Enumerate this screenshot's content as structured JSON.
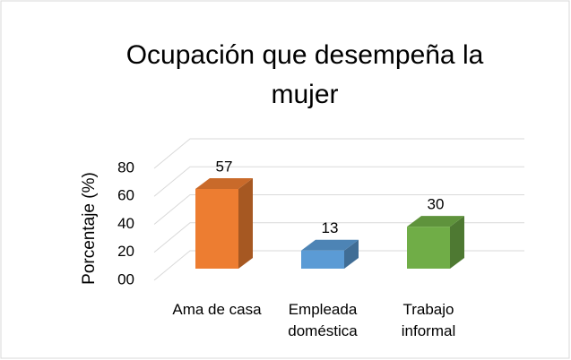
{
  "chart_data": {
    "type": "bar3d",
    "title": "Ocupación que desempeña la mujer",
    "y_label": "Porcentaje (%)",
    "categories": [
      "Ama de casa",
      "Empleada doméstica",
      "Trabajo informal"
    ],
    "values": [
      57,
      13,
      30
    ],
    "colors": [
      "#ed7d31",
      "#5b9bd5",
      "#70ad47"
    ],
    "ylim": [
      0,
      80
    ],
    "yticks": [
      {
        "value": 0,
        "label": "00"
      },
      20,
      40,
      60,
      80
    ],
    "grid": true
  }
}
